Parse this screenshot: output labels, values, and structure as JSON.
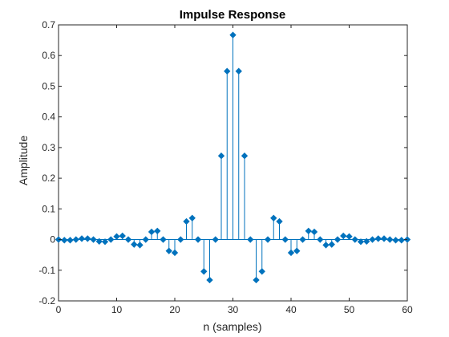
{
  "chart_data": {
    "type": "stem",
    "title": "Impulse Response",
    "xlabel": "n (samples)",
    "ylabel": "Amplitude",
    "xlim": [
      0,
      60
    ],
    "ylim": [
      -0.2,
      0.7
    ],
    "xticks": [
      0,
      10,
      20,
      30,
      40,
      50,
      60
    ],
    "yticks": [
      -0.2,
      -0.1,
      0,
      0.1,
      0.2,
      0.3,
      0.4,
      0.5,
      0.6,
      0.7
    ],
    "xtick_labels": [
      "0",
      "10",
      "20",
      "30",
      "40",
      "50",
      "60"
    ],
    "ytick_labels": [
      "-0.2",
      "-0.1",
      "0",
      "0.1",
      "0.2",
      "0.3",
      "0.4",
      "0.5",
      "0.6",
      "0.7"
    ],
    "grid": false,
    "legend": "none",
    "color": "#0072BD",
    "x": [
      0,
      1,
      2,
      3,
      4,
      5,
      6,
      7,
      8,
      9,
      10,
      11,
      12,
      13,
      14,
      15,
      16,
      17,
      18,
      19,
      20,
      21,
      22,
      23,
      24,
      25,
      26,
      27,
      28,
      29,
      30,
      31,
      32,
      33,
      34,
      35,
      36,
      37,
      38,
      39,
      40,
      41,
      42,
      43,
      44,
      45,
      46,
      47,
      48,
      49,
      50,
      51,
      52,
      53,
      54,
      55,
      56,
      57,
      58,
      59,
      60
    ],
    "y": [
      0.0,
      -0.002,
      -0.002,
      0.0,
      0.003,
      0.003,
      0.0,
      -0.006,
      -0.007,
      0.0,
      0.01,
      0.012,
      0.0,
      -0.016,
      -0.018,
      0.0,
      0.025,
      0.028,
      0.0,
      -0.037,
      -0.043,
      0.0,
      0.059,
      0.07,
      0.0,
      -0.104,
      -0.132,
      0.0,
      0.273,
      0.549,
      0.667,
      0.549,
      0.273,
      0.0,
      -0.132,
      -0.104,
      0.0,
      0.07,
      0.059,
      0.0,
      -0.043,
      -0.037,
      0.0,
      0.028,
      0.025,
      0.0,
      -0.018,
      -0.016,
      0.0,
      0.012,
      0.01,
      0.0,
      -0.007,
      -0.006,
      0.0,
      0.003,
      0.003,
      0.0,
      -0.002,
      -0.002,
      0.0
    ]
  }
}
